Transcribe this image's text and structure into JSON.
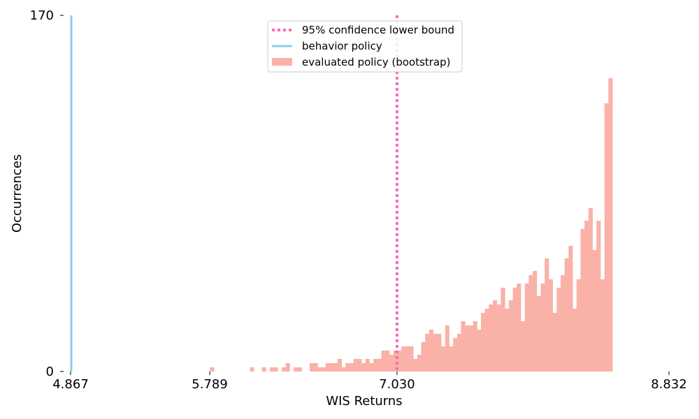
{
  "chart_data": {
    "type": "bar",
    "title": "",
    "xlabel": "WIS Returns",
    "ylabel": "Occurrences",
    "xlim": [
      4.867,
      8.832
    ],
    "ylim": [
      0,
      170
    ],
    "x_ticks": [
      "4.867",
      "5.789",
      "7.030",
      "8.832"
    ],
    "y_ticks": [
      "0",
      "170"
    ],
    "grid": false,
    "legend_position": "top-center",
    "colors": {
      "histogram": "#fab1a8",
      "behavior": "#87ceeb",
      "bound": "#ff69b4"
    },
    "legend": [
      {
        "label": "95% confidence lower bound",
        "style": "dotted-line",
        "color": "#ff69b4"
      },
      {
        "label": "behavior policy",
        "style": "line",
        "color": "#87ceeb"
      },
      {
        "label": "evaluated policy (bootstrap)",
        "style": "patch",
        "color": "#fab1a8"
      }
    ],
    "series": [
      {
        "name": "evaluated policy (bootstrap)",
        "kind": "histogram",
        "bin_start": 4.867,
        "bin_width": 0.0264,
        "counts": [
          0,
          0,
          0,
          0,
          0,
          0,
          0,
          0,
          0,
          0,
          0,
          0,
          0,
          0,
          0,
          0,
          0,
          0,
          0,
          0,
          0,
          0,
          0,
          0,
          0,
          0,
          0,
          0,
          0,
          0,
          0,
          0,
          0,
          0,
          0,
          2,
          0,
          0,
          0,
          0,
          0,
          0,
          0,
          0,
          0,
          2,
          0,
          0,
          2,
          0,
          2,
          2,
          0,
          2,
          4,
          0,
          2,
          2,
          0,
          0,
          4,
          4,
          2,
          2,
          4,
          4,
          4,
          6,
          2,
          4,
          4,
          6,
          6,
          4,
          6,
          4,
          6,
          6,
          10,
          10,
          8,
          10,
          10,
          12,
          12,
          12,
          6,
          8,
          14,
          18,
          20,
          18,
          18,
          12,
          22,
          12,
          16,
          18,
          24,
          22,
          22,
          24,
          20,
          28,
          30,
          32,
          34,
          32,
          40,
          30,
          34,
          40,
          42,
          24,
          42,
          46,
          48,
          36,
          42,
          54,
          44,
          28,
          40,
          46,
          54,
          60,
          30,
          44,
          68,
          72,
          78,
          58,
          72,
          44,
          128,
          140
        ]
      },
      {
        "name": "behavior policy",
        "kind": "vline",
        "x": 4.867
      },
      {
        "name": "95% confidence lower bound",
        "kind": "vline",
        "x": 7.03
      }
    ]
  }
}
